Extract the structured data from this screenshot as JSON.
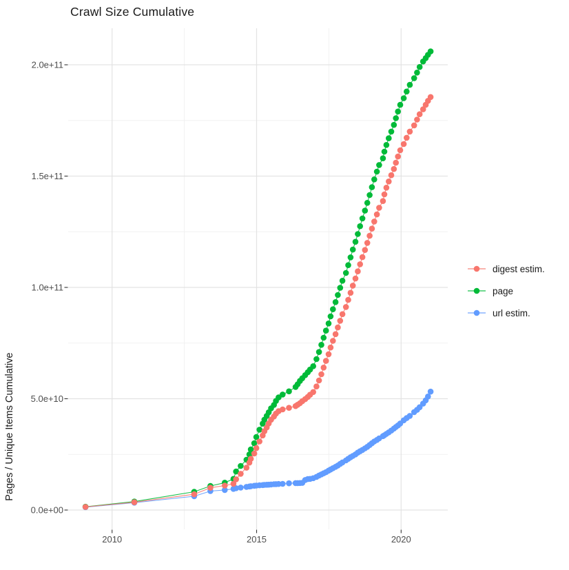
{
  "page": {
    "background": "#ffffff"
  },
  "chart_data": {
    "type": "scatter",
    "title": "Crawl Size Cumulative",
    "xlabel": "",
    "ylabel": "Pages / Unique Items Cumulative",
    "grid": {
      "shown": true,
      "major_color": "#e3e3e3",
      "minor_color": "#f1f1f1"
    },
    "text_colors": {
      "title": "#1a1a1a",
      "axis_text": "#4d4d4d",
      "tick_mark": "#333333"
    },
    "legend_position": "right",
    "x_axis": {
      "tick_values": [
        2010,
        2015,
        2020
      ],
      "tick_labels": [
        "2010",
        "2015",
        "2020"
      ],
      "minor_tick_values": [
        2012.5,
        2017.5
      ],
      "range": [
        2008.48,
        2021.62
      ]
    },
    "y_axis": {
      "tick_values_billions": [
        0,
        50,
        100,
        150,
        200
      ],
      "tick_labels": [
        "0.0e+00",
        "5.0e+10",
        "1.0e+11",
        "1.5e+11",
        "2.0e+11"
      ],
      "minor_tick_values_billions": [
        25,
        75,
        125,
        175
      ],
      "range_billions": [
        -10.3,
        216.3
      ]
    },
    "values_unit": "billions (1e9) of pages / unique items, x = decimal year",
    "series": [
      {
        "name": "digest estim.",
        "color": "#F8766D",
        "points_year_billion": [
          [
            2009.08,
            1.4
          ],
          [
            2010.77,
            3.5
          ],
          [
            2012.84,
            7.1
          ],
          [
            2013.4,
            10.0
          ],
          [
            2013.9,
            11.0
          ],
          [
            2014.2,
            11.8
          ],
          [
            2014.29,
            13.8
          ],
          [
            2014.45,
            16.3
          ],
          [
            2014.65,
            19.0
          ],
          [
            2014.75,
            21.3
          ],
          [
            2014.8,
            23.0
          ],
          [
            2014.92,
            25.4
          ],
          [
            2014.99,
            27.8
          ],
          [
            2015.1,
            30.8
          ],
          [
            2015.21,
            33.5
          ],
          [
            2015.27,
            35.4
          ],
          [
            2015.35,
            37.1
          ],
          [
            2015.42,
            38.9
          ],
          [
            2015.5,
            40.6
          ],
          [
            2015.6,
            42.0
          ],
          [
            2015.67,
            43.3
          ],
          [
            2015.76,
            44.4
          ],
          [
            2015.9,
            45.2
          ],
          [
            2016.12,
            45.9
          ],
          [
            2016.35,
            46.7
          ],
          [
            2016.42,
            47.3
          ],
          [
            2016.5,
            48.0
          ],
          [
            2016.58,
            48.9
          ],
          [
            2016.68,
            49.8
          ],
          [
            2016.77,
            50.8
          ],
          [
            2016.85,
            51.8
          ],
          [
            2016.96,
            53.0
          ],
          [
            2017.07,
            55.5
          ],
          [
            2017.16,
            58.2
          ],
          [
            2017.24,
            61.0
          ],
          [
            2017.32,
            64.0
          ],
          [
            2017.4,
            67.0
          ],
          [
            2017.49,
            70.0
          ],
          [
            2017.56,
            73.0
          ],
          [
            2017.64,
            76.0
          ],
          [
            2017.73,
            79.0
          ],
          [
            2017.81,
            82.0
          ],
          [
            2017.89,
            85.0
          ],
          [
            2017.97,
            88.0
          ],
          [
            2018.09,
            91.2
          ],
          [
            2018.17,
            94.4
          ],
          [
            2018.25,
            97.6
          ],
          [
            2018.33,
            100.8
          ],
          [
            2018.42,
            104.0
          ],
          [
            2018.5,
            107.2
          ],
          [
            2018.58,
            110.4
          ],
          [
            2018.66,
            113.6
          ],
          [
            2018.75,
            116.8
          ],
          [
            2018.83,
            120.0
          ],
          [
            2018.91,
            123.2
          ],
          [
            2018.99,
            126.4
          ],
          [
            2019.07,
            129.6
          ],
          [
            2019.16,
            132.8
          ],
          [
            2019.24,
            135.8
          ],
          [
            2019.37,
            138.8
          ],
          [
            2019.42,
            141.8
          ],
          [
            2019.49,
            144.8
          ],
          [
            2019.57,
            147.6
          ],
          [
            2019.66,
            150.4
          ],
          [
            2019.75,
            153.2
          ],
          [
            2019.82,
            156.0
          ],
          [
            2019.89,
            158.8
          ],
          [
            2019.97,
            161.6
          ],
          [
            2020.09,
            164.4
          ],
          [
            2020.19,
            167.2
          ],
          [
            2020.3,
            170.0
          ],
          [
            2020.45,
            172.8
          ],
          [
            2020.55,
            175.4
          ],
          [
            2020.64,
            177.8
          ],
          [
            2020.76,
            180.0
          ],
          [
            2020.85,
            182.0
          ],
          [
            2020.93,
            183.8
          ],
          [
            2021.02,
            185.5
          ]
        ]
      },
      {
        "name": "page",
        "color": "#00BA38",
        "points_year_billion": [
          [
            2009.08,
            1.5
          ],
          [
            2010.77,
            3.8
          ],
          [
            2012.84,
            8.2
          ],
          [
            2013.4,
            10.8
          ],
          [
            2013.9,
            12.3
          ],
          [
            2014.2,
            14.0
          ],
          [
            2014.29,
            17.3
          ],
          [
            2014.45,
            19.8
          ],
          [
            2014.65,
            22.6
          ],
          [
            2014.75,
            25.0
          ],
          [
            2014.8,
            27.2
          ],
          [
            2014.92,
            30.0
          ],
          [
            2014.99,
            32.8
          ],
          [
            2015.1,
            36.1
          ],
          [
            2015.21,
            38.8
          ],
          [
            2015.27,
            40.6
          ],
          [
            2015.35,
            42.3
          ],
          [
            2015.42,
            43.9
          ],
          [
            2015.5,
            45.7
          ],
          [
            2015.6,
            47.2
          ],
          [
            2015.67,
            49.0
          ],
          [
            2015.76,
            50.6
          ],
          [
            2015.9,
            51.9
          ],
          [
            2016.12,
            53.3
          ],
          [
            2016.35,
            55.3
          ],
          [
            2016.42,
            56.5
          ],
          [
            2016.5,
            58.0
          ],
          [
            2016.58,
            59.2
          ],
          [
            2016.68,
            60.6
          ],
          [
            2016.77,
            61.9
          ],
          [
            2016.85,
            63.1
          ],
          [
            2016.96,
            64.6
          ],
          [
            2017.07,
            67.8
          ],
          [
            2017.16,
            71.0
          ],
          [
            2017.24,
            74.2
          ],
          [
            2017.32,
            77.4
          ],
          [
            2017.4,
            80.6
          ],
          [
            2017.49,
            83.8
          ],
          [
            2017.56,
            87.0
          ],
          [
            2017.64,
            90.2
          ],
          [
            2017.73,
            93.4
          ],
          [
            2017.81,
            96.6
          ],
          [
            2017.89,
            99.8
          ],
          [
            2017.97,
            103.0
          ],
          [
            2018.09,
            106.5
          ],
          [
            2018.17,
            110.0
          ],
          [
            2018.25,
            113.5
          ],
          [
            2018.33,
            117.0
          ],
          [
            2018.42,
            120.5
          ],
          [
            2018.5,
            124.0
          ],
          [
            2018.58,
            127.5
          ],
          [
            2018.66,
            131.0
          ],
          [
            2018.75,
            134.5
          ],
          [
            2018.83,
            138.0
          ],
          [
            2018.91,
            141.5
          ],
          [
            2018.99,
            145.0
          ],
          [
            2019.07,
            148.5
          ],
          [
            2019.16,
            152.0
          ],
          [
            2019.24,
            155.0
          ],
          [
            2019.37,
            158.0
          ],
          [
            2019.42,
            161.0
          ],
          [
            2019.49,
            164.0
          ],
          [
            2019.57,
            167.0
          ],
          [
            2019.66,
            170.0
          ],
          [
            2019.75,
            173.0
          ],
          [
            2019.82,
            176.0
          ],
          [
            2019.89,
            179.0
          ],
          [
            2019.97,
            182.0
          ],
          [
            2020.09,
            185.0
          ],
          [
            2020.19,
            188.0
          ],
          [
            2020.3,
            191.0
          ],
          [
            2020.45,
            194.0
          ],
          [
            2020.55,
            196.5
          ],
          [
            2020.64,
            199.0
          ],
          [
            2020.76,
            201.5
          ],
          [
            2020.85,
            203.0
          ],
          [
            2020.93,
            204.5
          ],
          [
            2021.02,
            206.0
          ]
        ]
      },
      {
        "name": "url estim.",
        "color": "#619CFF",
        "points_year_billion": [
          [
            2009.08,
            1.3
          ],
          [
            2010.77,
            3.3
          ],
          [
            2012.84,
            6.2
          ],
          [
            2013.4,
            8.5
          ],
          [
            2013.9,
            9.0
          ],
          [
            2014.2,
            9.5
          ],
          [
            2014.29,
            9.8
          ],
          [
            2014.45,
            10.1
          ],
          [
            2014.65,
            10.4
          ],
          [
            2014.75,
            10.6
          ],
          [
            2014.8,
            10.7
          ],
          [
            2014.92,
            10.9
          ],
          [
            2014.99,
            11.0
          ],
          [
            2015.1,
            11.1
          ],
          [
            2015.21,
            11.2
          ],
          [
            2015.27,
            11.3
          ],
          [
            2015.35,
            11.35
          ],
          [
            2015.42,
            11.4
          ],
          [
            2015.5,
            11.5
          ],
          [
            2015.6,
            11.6
          ],
          [
            2015.67,
            11.65
          ],
          [
            2015.76,
            11.7
          ],
          [
            2015.9,
            11.75
          ],
          [
            2016.12,
            12.0
          ],
          [
            2016.35,
            12.1
          ],
          [
            2016.42,
            12.1
          ],
          [
            2016.5,
            12.15
          ],
          [
            2016.58,
            12.2
          ],
          [
            2016.68,
            13.5
          ],
          [
            2016.77,
            13.9
          ],
          [
            2016.85,
            14.0
          ],
          [
            2016.96,
            14.3
          ],
          [
            2017.07,
            14.9
          ],
          [
            2017.16,
            15.5
          ],
          [
            2017.24,
            16.0
          ],
          [
            2017.32,
            16.5
          ],
          [
            2017.4,
            17.0
          ],
          [
            2017.49,
            17.7
          ],
          [
            2017.56,
            18.2
          ],
          [
            2017.64,
            18.8
          ],
          [
            2017.73,
            19.4
          ],
          [
            2017.81,
            20.0
          ],
          [
            2017.89,
            20.7
          ],
          [
            2017.97,
            21.4
          ],
          [
            2018.09,
            22.3
          ],
          [
            2018.17,
            23.0
          ],
          [
            2018.25,
            23.7
          ],
          [
            2018.33,
            24.3
          ],
          [
            2018.42,
            25.0
          ],
          [
            2018.5,
            25.8
          ],
          [
            2018.58,
            26.4
          ],
          [
            2018.66,
            27.0
          ],
          [
            2018.75,
            27.7
          ],
          [
            2018.83,
            28.4
          ],
          [
            2018.91,
            29.2
          ],
          [
            2018.99,
            30.0
          ],
          [
            2019.07,
            30.8
          ],
          [
            2019.16,
            31.5
          ],
          [
            2019.24,
            32.2
          ],
          [
            2019.37,
            33.2
          ],
          [
            2019.42,
            33.6
          ],
          [
            2019.49,
            34.2
          ],
          [
            2019.57,
            34.9
          ],
          [
            2019.66,
            35.7
          ],
          [
            2019.75,
            36.6
          ],
          [
            2019.82,
            37.3
          ],
          [
            2019.89,
            38.0
          ],
          [
            2019.97,
            38.9
          ],
          [
            2020.09,
            40.3
          ],
          [
            2020.19,
            41.3
          ],
          [
            2020.3,
            42.3
          ],
          [
            2020.45,
            44.0
          ],
          [
            2020.55,
            45.0
          ],
          [
            2020.64,
            46.2
          ],
          [
            2020.76,
            47.8
          ],
          [
            2020.85,
            49.3
          ],
          [
            2020.93,
            51.0
          ],
          [
            2021.02,
            53.2
          ]
        ]
      }
    ]
  }
}
